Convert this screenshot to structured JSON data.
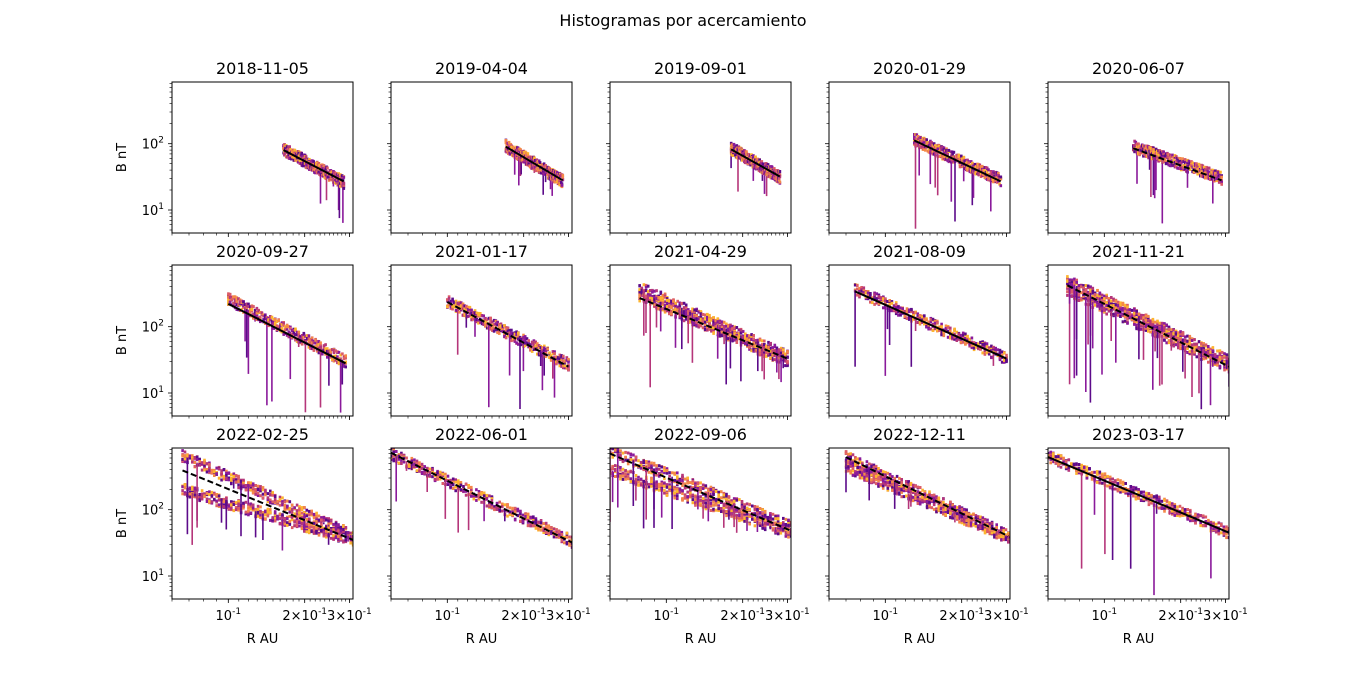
{
  "figure": {
    "suptitle": "Histogramas por acercamiento",
    "ylabel": "B nT",
    "xlabel": "R AU",
    "x_ticks": [
      {
        "value": 0.1,
        "label": "10^{-1}"
      },
      {
        "value": 0.2,
        "label": "2×10^{-1}"
      },
      {
        "value": 0.3,
        "label": "3×10^{-1}"
      }
    ],
    "y_ticks": [
      {
        "value": 10,
        "label": "10^{1}"
      },
      {
        "value": 100,
        "label": "10^{2}"
      }
    ],
    "colormap": [
      "#5c0b8a",
      "#8a1a9b",
      "#b5367a",
      "#db5c68",
      "#f48849",
      "#fdb42f"
    ],
    "fit_color": "#000000"
  },
  "chart_data": [
    {
      "type": "heatmap",
      "title": "2018-11-05",
      "xscale": "log",
      "yscale": "log",
      "xlim": [
        0.06,
        0.31
      ],
      "ylim": [
        4.5,
        850
      ],
      "fit": {
        "style": "solid",
        "x": [
          0.165,
          0.285
        ],
        "y": [
          80,
          27
        ]
      },
      "band_x": [
        0.165,
        0.285
      ],
      "band_y": [
        [
          82,
          26
        ]
      ],
      "spikes_down_to": 5
    },
    {
      "type": "heatmap",
      "title": "2019-04-04",
      "xscale": "log",
      "yscale": "log",
      "xlim": [
        0.06,
        0.31
      ],
      "ylim": [
        4.5,
        850
      ],
      "fit": {
        "style": "solid",
        "x": [
          0.17,
          0.285
        ],
        "y": [
          90,
          28
        ]
      },
      "band_x": [
        0.17,
        0.285
      ],
      "band_y": [
        [
          92,
          27
        ]
      ],
      "spikes_down_to": 15
    },
    {
      "type": "heatmap",
      "title": "2019-09-01",
      "xscale": "log",
      "yscale": "log",
      "xlim": [
        0.06,
        0.31
      ],
      "ylim": [
        4.5,
        850
      ],
      "fit": {
        "style": "solid",
        "x": [
          0.18,
          0.28
        ],
        "y": [
          82,
          32
        ]
      },
      "band_x": [
        0.18,
        0.28
      ],
      "band_y": [
        [
          85,
          31
        ]
      ],
      "spikes_down_to": 16
    },
    {
      "type": "heatmap",
      "title": "2020-01-29",
      "xscale": "log",
      "yscale": "log",
      "xlim": [
        0.06,
        0.31
      ],
      "ylim": [
        4.5,
        850
      ],
      "fit": {
        "style": "solid",
        "x": [
          0.13,
          0.285
        ],
        "y": [
          112,
          27
        ]
      },
      "band_x": [
        0.13,
        0.285
      ],
      "band_y": [
        [
          115,
          28
        ]
      ],
      "spikes_down_to": 5
    },
    {
      "type": "heatmap",
      "title": "2020-06-07",
      "xscale": "log",
      "yscale": "log",
      "xlim": [
        0.06,
        0.31
      ],
      "ylim": [
        4.5,
        850
      ],
      "fit": {
        "style": "dashed",
        "x": [
          0.13,
          0.29
        ],
        "y": [
          85,
          28
        ]
      },
      "band_x": [
        0.13,
        0.29
      ],
      "band_y": [
        [
          90,
          30
        ]
      ],
      "spikes_down_to": 5
    },
    {
      "type": "heatmap",
      "title": "2020-09-27",
      "xscale": "log",
      "yscale": "log",
      "xlim": [
        0.06,
        0.31
      ],
      "ylim": [
        4.5,
        850
      ],
      "fit": {
        "style": "solid",
        "x": [
          0.1,
          0.29
        ],
        "y": [
          220,
          28
        ]
      },
      "band_x": [
        0.1,
        0.29
      ],
      "band_y": [
        [
          260,
          30
        ]
      ],
      "spikes_down_to": 5
    },
    {
      "type": "heatmap",
      "title": "2021-01-17",
      "xscale": "log",
      "yscale": "log",
      "xlim": [
        0.06,
        0.31
      ],
      "ylim": [
        4.5,
        850
      ],
      "fit": {
        "style": "dashed",
        "x": [
          0.1,
          0.3
        ],
        "y": [
          235,
          25
        ]
      },
      "band_x": [
        0.1,
        0.3
      ],
      "band_y": [
        [
          240,
          27
        ]
      ],
      "spikes_down_to": 5
    },
    {
      "type": "heatmap",
      "title": "2021-04-29",
      "xscale": "log",
      "yscale": "log",
      "xlim": [
        0.06,
        0.31
      ],
      "ylim": [
        4.5,
        850
      ],
      "fit": {
        "style": "dashed",
        "x": [
          0.0785,
          0.3
        ],
        "y": [
          270,
          33
        ]
      },
      "band_x": [
        0.0785,
        0.3
      ],
      "band_y": [
        [
          300,
          30
        ],
        [
          380,
          35
        ]
      ],
      "spikes_down_to": 12
    },
    {
      "type": "heatmap",
      "title": "2021-08-09",
      "xscale": "log",
      "yscale": "log",
      "xlim": [
        0.06,
        0.31
      ],
      "ylim": [
        4.5,
        850
      ],
      "fit": {
        "style": "solid",
        "x": [
          0.076,
          0.3
        ],
        "y": [
          340,
          33
        ]
      },
      "band_x": [
        0.076,
        0.3
      ],
      "band_y": [
        [
          360,
          33
        ]
      ],
      "spikes_down_to": 12
    },
    {
      "type": "heatmap",
      "title": "2021-11-21",
      "xscale": "log",
      "yscale": "log",
      "xlim": [
        0.06,
        0.31
      ],
      "ylim": [
        4.5,
        850
      ],
      "fit": {
        "style": "dashed",
        "x": [
          0.0715,
          0.31
        ],
        "y": [
          420,
          25
        ]
      },
      "band_x": [
        0.0715,
        0.31
      ],
      "band_y": [
        [
          360,
          25
        ],
        [
          480,
          30
        ]
      ],
      "spikes_down_to": 5
    },
    {
      "type": "heatmap",
      "title": "2022-02-25",
      "xscale": "log",
      "yscale": "log",
      "xlim": [
        0.06,
        0.31
      ],
      "ylim": [
        4.5,
        850
      ],
      "fit": {
        "style": "dashed",
        "x": [
          0.066,
          0.31
        ],
        "y": [
          390,
          35
        ]
      },
      "band_x": [
        0.066,
        0.31
      ],
      "band_y": [
        [
          200,
          35
        ],
        [
          650,
          40
        ]
      ],
      "spikes_down_to": 22
    },
    {
      "type": "heatmap",
      "title": "2022-06-01",
      "xscale": "log",
      "yscale": "log",
      "xlim": [
        0.06,
        0.31
      ],
      "ylim": [
        4.5,
        850
      ],
      "fit": {
        "style": "dashed",
        "x": [
          0.06,
          0.31
        ],
        "y": [
          720,
          32
        ]
      },
      "band_x": [
        0.06,
        0.31
      ],
      "band_y": [
        [
          700,
          33
        ]
      ],
      "spikes_down_to": 40
    },
    {
      "type": "heatmap",
      "title": "2022-09-06",
      "xscale": "log",
      "yscale": "log",
      "xlim": [
        0.06,
        0.31
      ],
      "ylim": [
        4.5,
        850
      ],
      "fit": {
        "style": "dashed",
        "x": [
          0.06,
          0.31
        ],
        "y": [
          700,
          48
        ]
      },
      "band_x": [
        0.06,
        0.31
      ],
      "band_y": [
        [
          400,
          45
        ],
        [
          780,
          55
        ]
      ],
      "spikes_down_to": 40
    },
    {
      "type": "heatmap",
      "title": "2022-12-11",
      "xscale": "log",
      "yscale": "log",
      "xlim": [
        0.06,
        0.31
      ],
      "ylim": [
        4.5,
        850
      ],
      "fit": {
        "style": "dashed",
        "x": [
          0.07,
          0.305
        ],
        "y": [
          620,
          40
        ]
      },
      "band_x": [
        0.07,
        0.305
      ],
      "band_y": [
        [
          450,
          38
        ],
        [
          620,
          40
        ]
      ],
      "spikes_down_to": 60
    },
    {
      "type": "heatmap",
      "title": "2023-03-17",
      "xscale": "log",
      "yscale": "log",
      "xlim": [
        0.06,
        0.31
      ],
      "ylim": [
        4.5,
        850
      ],
      "fit": {
        "style": "solid",
        "x": [
          0.06,
          0.31
        ],
        "y": [
          620,
          45
        ]
      },
      "band_x": [
        0.06,
        0.31
      ],
      "band_y": [
        [
          650,
          45
        ]
      ],
      "spikes_down_to": 5
    }
  ]
}
